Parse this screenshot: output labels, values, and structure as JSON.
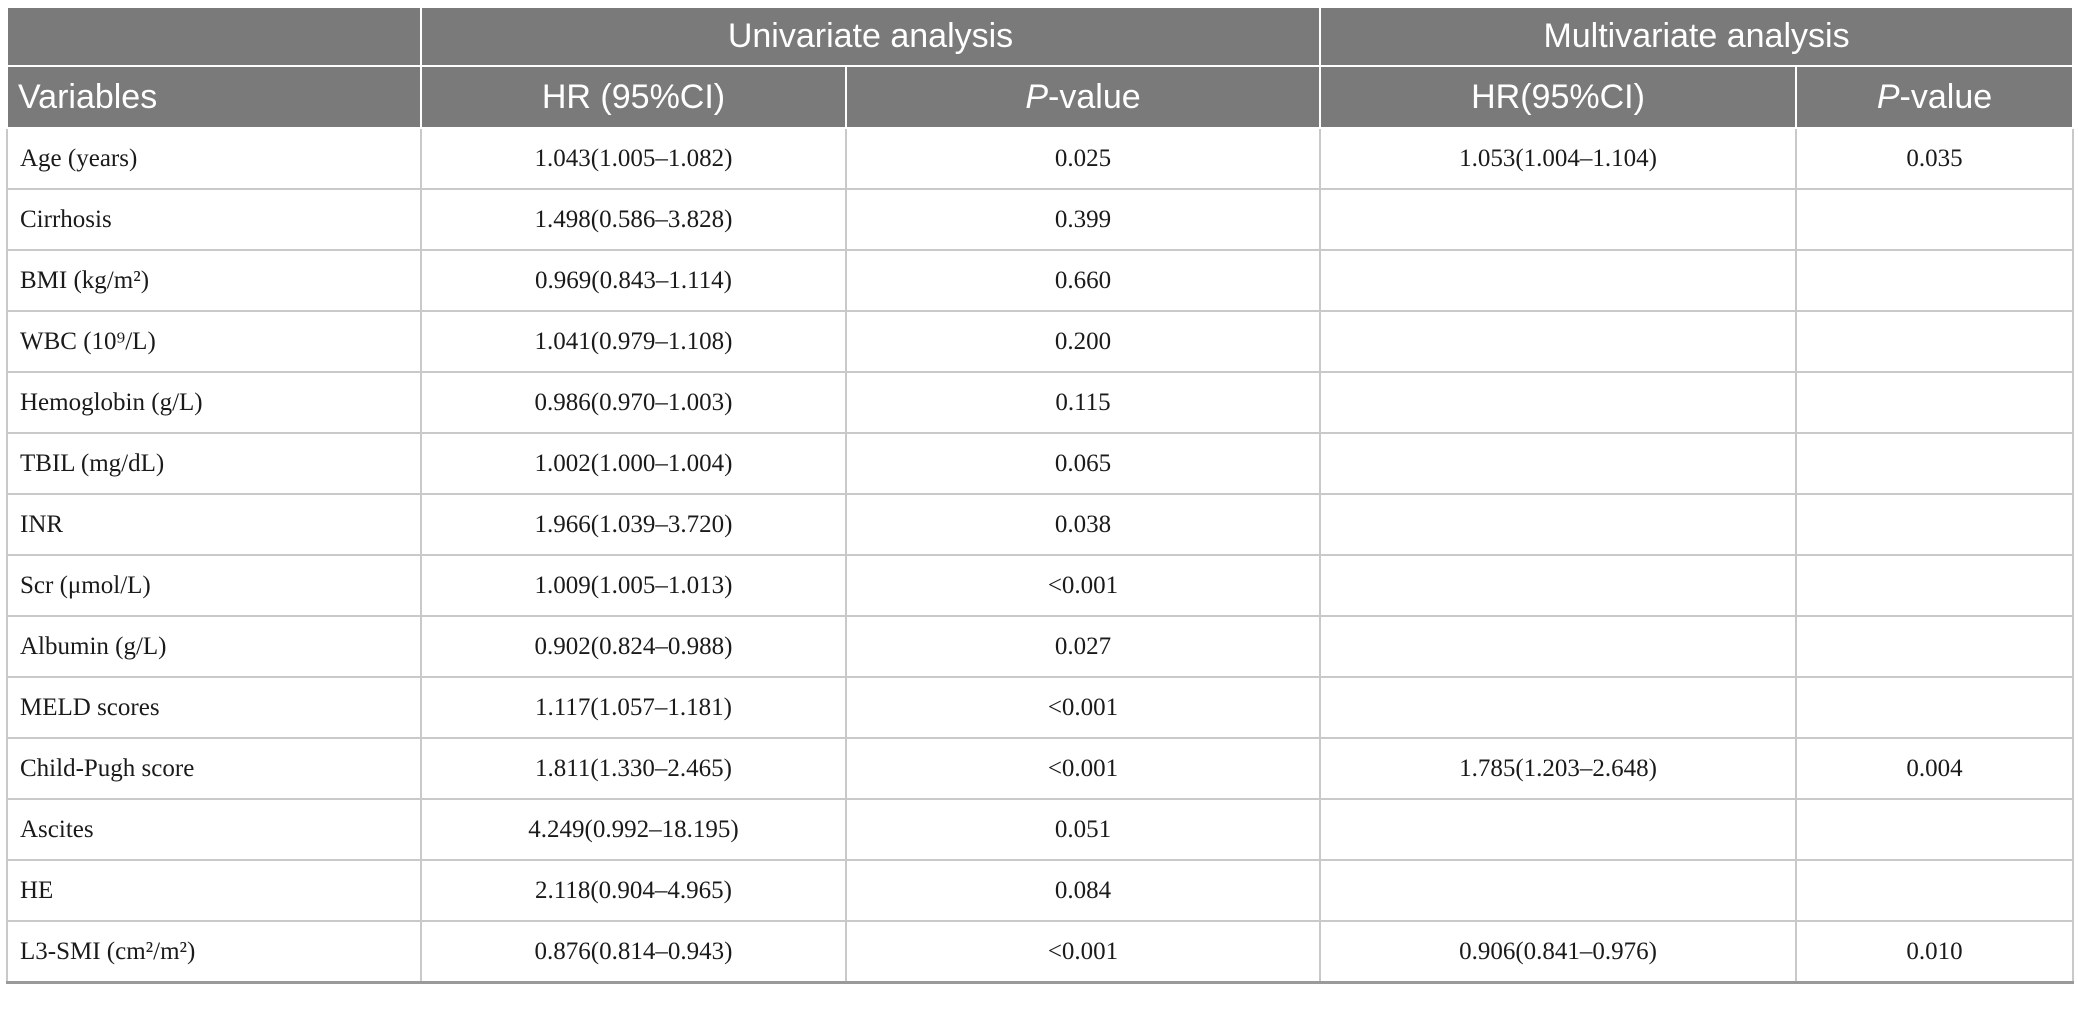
{
  "table": {
    "group_headers": {
      "univariate": "Univariate analysis",
      "multivariate": "Multivariate analysis"
    },
    "columns": {
      "variables": "Variables",
      "uni_hr": "HR (95%CI)",
      "uni_p_italic": "P",
      "uni_p_rest": "-value",
      "multi_hr": "HR(95%CI)",
      "multi_p_italic": "P",
      "multi_p_rest": "-value"
    },
    "rows": [
      {
        "variable": "Age (years)",
        "uni_hr": "1.043(1.005–1.082)",
        "uni_p": "0.025",
        "multi_hr": "1.053(1.004–1.104)",
        "multi_p": "0.035"
      },
      {
        "variable": "Cirrhosis",
        "uni_hr": "1.498(0.586–3.828)",
        "uni_p": "0.399",
        "multi_hr": "",
        "multi_p": ""
      },
      {
        "variable": "BMI (kg/m²)",
        "uni_hr": "0.969(0.843–1.114)",
        "uni_p": "0.660",
        "multi_hr": "",
        "multi_p": ""
      },
      {
        "variable": "WBC (10⁹/L)",
        "uni_hr": "1.041(0.979–1.108)",
        "uni_p": "0.200",
        "multi_hr": "",
        "multi_p": ""
      },
      {
        "variable": "Hemoglobin (g/L)",
        "uni_hr": "0.986(0.970–1.003)",
        "uni_p": "0.115",
        "multi_hr": "",
        "multi_p": ""
      },
      {
        "variable": "TBIL (mg/dL)",
        "uni_hr": "1.002(1.000–1.004)",
        "uni_p": "0.065",
        "multi_hr": "",
        "multi_p": ""
      },
      {
        "variable": "INR",
        "uni_hr": "1.966(1.039–3.720)",
        "uni_p": "0.038",
        "multi_hr": "",
        "multi_p": ""
      },
      {
        "variable": "Scr (μmol/L)",
        "uni_hr": "1.009(1.005–1.013)",
        "uni_p": "<0.001",
        "multi_hr": "",
        "multi_p": ""
      },
      {
        "variable": "Albumin (g/L)",
        "uni_hr": "0.902(0.824–0.988)",
        "uni_p": "0.027",
        "multi_hr": "",
        "multi_p": ""
      },
      {
        "variable": "MELD scores",
        "uni_hr": "1.117(1.057–1.181)",
        "uni_p": "<0.001",
        "multi_hr": "",
        "multi_p": ""
      },
      {
        "variable": "Child-Pugh score",
        "uni_hr": "1.811(1.330–2.465)",
        "uni_p": "<0.001",
        "multi_hr": "1.785(1.203–2.648)",
        "multi_p": "0.004"
      },
      {
        "variable": "Ascites",
        "uni_hr": "4.249(0.992–18.195)",
        "uni_p": "0.051",
        "multi_hr": "",
        "multi_p": ""
      },
      {
        "variable": "HE",
        "uni_hr": "2.118(0.904–4.965)",
        "uni_p": "0.084",
        "multi_hr": "",
        "multi_p": ""
      },
      {
        "variable": "L3-SMI (cm²/m²)",
        "uni_hr": "0.876(0.814–0.943)",
        "uni_p": "<0.001",
        "multi_hr": "0.906(0.841–0.976)",
        "multi_p": "0.010"
      }
    ]
  },
  "colors": {
    "header_bg": "#7a7a7a",
    "header_text": "#ffffff",
    "grid_line": "#c9c9c9"
  }
}
